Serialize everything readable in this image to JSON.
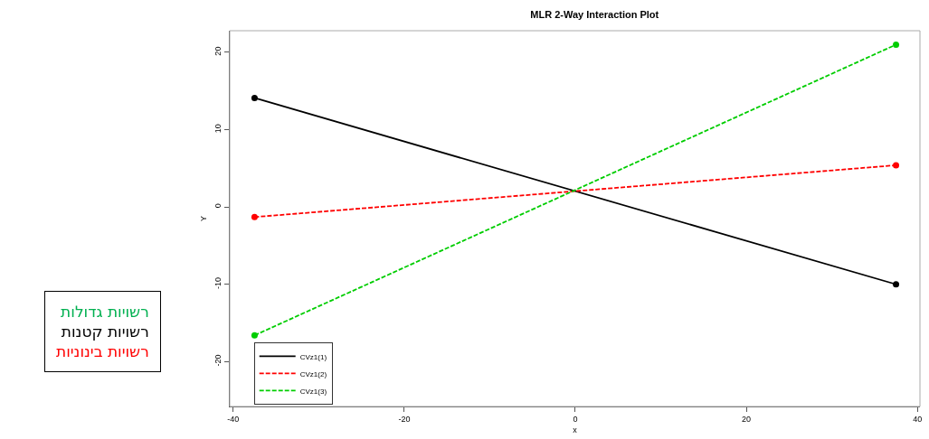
{
  "chart_data": {
    "type": "line",
    "title": "MLR 2-Way Interaction Plot",
    "xlabel": "x",
    "ylabel": "Y",
    "x": [
      -37.5,
      37.5
    ],
    "series": [
      {
        "name": "CVz1(1)",
        "color": "#000000",
        "values": [
          14.1,
          -10.0
        ],
        "line_style": "solid"
      },
      {
        "name": "CVz1(2)",
        "color": "#ff0000",
        "values": [
          -1.3,
          5.4
        ],
        "line_style": "dashed"
      },
      {
        "name": "CVz1(3)",
        "color": "#00cd00",
        "values": [
          -16.6,
          21.0
        ],
        "line_style": "dashed"
      }
    ],
    "xlim": [
      -40.4,
      40.3
    ],
    "xticks": [
      -40,
      -20,
      0,
      20,
      40
    ],
    "ylim": [
      -25.8,
      22.8
    ],
    "yticks": [
      -20,
      -10,
      0,
      10,
      20
    ],
    "marker": "circle",
    "grid": false,
    "legend": "bottom left",
    "annotations": [
      "רשויות גדולות",
      "רשויות קטנות",
      "רשויות בינוניות"
    ]
  }
}
